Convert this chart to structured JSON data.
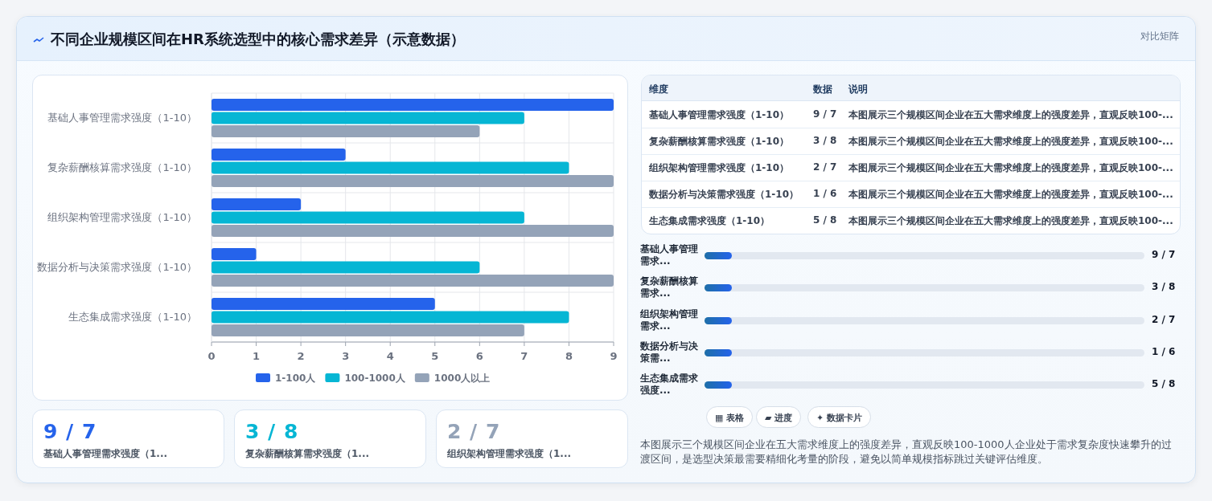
{
  "chart_data": [
    {
      "type": "bar",
      "orientation": "horizontal",
      "title": "不同企业规模区间在HR系统选型中的核心需求差异（示意数据）",
      "categories": [
        "基础人事管理需求强度（1-10）",
        "复杂薪酬核算需求强度（1-10）",
        "组织架构管理需求强度（1-10）",
        "数据分析与决策需求强度（1-10）",
        "生态集成需求强度（1-10）"
      ],
      "series": [
        {
          "name": "1-100人",
          "color": "#2563eb",
          "values": [
            9,
            3,
            2,
            1,
            5
          ]
        },
        {
          "name": "100-1000人",
          "color": "#06b6d4",
          "values": [
            7,
            8,
            7,
            6,
            8
          ]
        },
        {
          "name": "1000人以上",
          "color": "#94a3b8",
          "values": [
            6,
            9,
            9,
            9,
            7
          ]
        }
      ],
      "xlim": [
        0,
        9
      ],
      "xticks": [
        0,
        1,
        2,
        3,
        4,
        5,
        6,
        7,
        8,
        9
      ],
      "grid": true,
      "legend": "bottom"
    },
    {
      "type": "other",
      "title": "对比矩阵",
      "annotations": [
        "维度",
        "数据",
        "说明",
        "基础人事管理需求强度（1-10）",
        "9 / 7",
        "本图展示三个规模区间企业在五大需求维度上的强度差异，直观反映100-...",
        "复杂薪酬核算需求强度（1-10）",
        "3 / 8",
        "本图展示三个规模区间企业在五大需求维度上的强度差异，直观反映100-...",
        "组织架构管理需求强度（1-10）",
        "2 / 7",
        "本图展示三个规模区间企业在五大需求维度上的强度差异，直观反映100-...",
        "数据分析与决策需求强度（1-10）",
        "1 / 6",
        "本图展示三个规模区间企业在五大需求维度上的强度差异，直观反映100-...",
        "生态集成需求强度（1-10）",
        "5 / 8",
        "本图展示三个规模区间企业在五大需求维度上的强度差异，直观反映100-..."
      ]
    },
    {
      "type": "other",
      "annotations": [
        "基础人事管理需求...",
        "9 / 7",
        "复杂薪酬核算需求...",
        "3 / 8",
        "组织架构管理需求...",
        "2 / 7",
        "数据分析与决策需...",
        "1 / 6",
        "生态集成需求强度...",
        "5 / 8"
      ]
    },
    {
      "type": "other",
      "annotations": [
        "9 / 7",
        "基础人事管理需求强度（1...",
        "3 / 8",
        "复杂薪酬核算需求强度（1...",
        "2 / 7",
        "组织架构管理需求强度（1..."
      ]
    },
    {
      "type": "other",
      "annotations": [
        "▦ 表格",
        "▰ 进度",
        "✦ 数据卡片",
        "本图展示三个规模区间企业在五大需求维度上的强度差异，直观反映100-1000人企业处于需求复杂度快速攀升的过渡区间，是选型决策最需要精细化考量的阶段，避免以简单规模指标跳过关键评估维度。"
      ]
    }
  ]
}
